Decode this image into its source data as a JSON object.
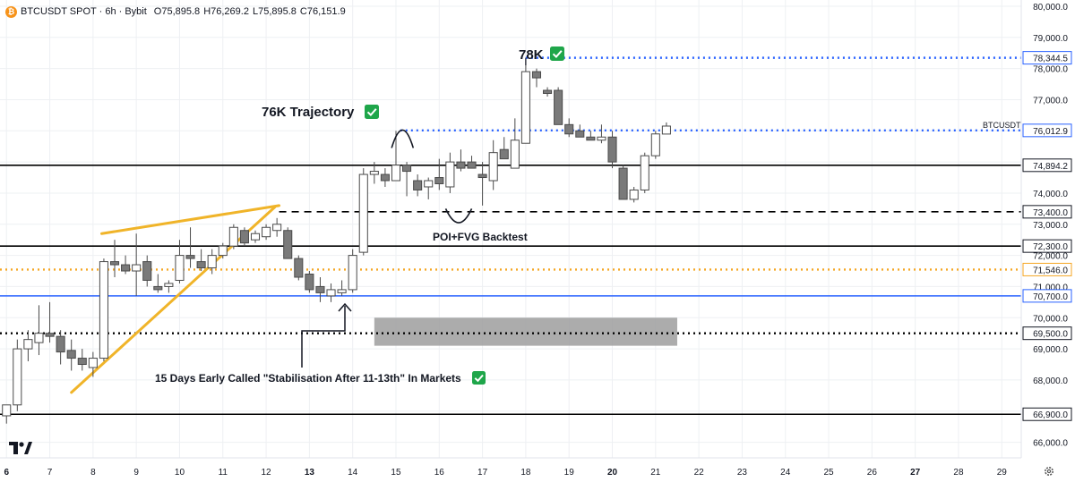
{
  "header": {
    "symbol_line": "BTCUSDT SPOT · 6h · Bybit",
    "coin_icon": "bitcoin-icon",
    "o_label": "O",
    "o_value": "75,895.8",
    "h_label": "H",
    "h_value": "76,269.2",
    "l_label": "L",
    "l_value": "75,895.8",
    "c_label": "C",
    "c_value": "76,151.9"
  },
  "brand_icon": "tradingview-logo-icon",
  "settings_icon": "gear-icon",
  "chart_data": {
    "type": "candlestick",
    "timeframe": "6h",
    "symbol": "BTCUSDT",
    "up_color": "#ffffff",
    "down_color": "#7a7a7a",
    "wick_color": "#4a4a4a",
    "y_range": [
      65500,
      80200
    ],
    "x_range": [
      5.85,
      29.45
    ],
    "y_ticks": [
      66000,
      67000,
      68000,
      69000,
      70000,
      71000,
      72000,
      73000,
      74000,
      75000,
      76000,
      77000,
      78000,
      79000,
      80000
    ],
    "y_tick_labels": [
      "66,000.0",
      "67,000.0",
      "68,000.0",
      "69,000.0",
      "70,000.0",
      "71,000.0",
      "72,000.0",
      "73,000.0",
      "74,000.0",
      "75,000.0",
      "76,000.0",
      "77,000.0",
      "78,000.0",
      "79,000.0",
      "80,000.0"
    ],
    "x_ticks": [
      6,
      7,
      8,
      9,
      10,
      11,
      12,
      13,
      14,
      15,
      16,
      17,
      18,
      19,
      20,
      21,
      22,
      23,
      24,
      25,
      26,
      27,
      28,
      29
    ],
    "x_tick_labels": [
      "6",
      "7",
      "8",
      "9",
      "10",
      "11",
      "12",
      "13",
      "14",
      "15",
      "16",
      "17",
      "18",
      "19",
      "20",
      "21",
      "22",
      "23",
      "24",
      "25",
      "26",
      "27",
      "28",
      "29"
    ],
    "bold_x_ticks": [
      "6",
      "13",
      "20",
      "27"
    ],
    "grid": true,
    "candles": [
      {
        "t": 6.0,
        "o": 66850,
        "h": 67100,
        "l": 66600,
        "c": 67200
      },
      {
        "t": 6.25,
        "o": 67200,
        "h": 69300,
        "l": 67000,
        "c": 69000
      },
      {
        "t": 6.5,
        "o": 69000,
        "h": 69600,
        "l": 68600,
        "c": 69300
      },
      {
        "t": 6.75,
        "o": 69200,
        "h": 70400,
        "l": 68800,
        "c": 69500
      },
      {
        "t": 7.0,
        "o": 69500,
        "h": 70500,
        "l": 69200,
        "c": 69400
      },
      {
        "t": 7.25,
        "o": 69400,
        "h": 69600,
        "l": 68500,
        "c": 68900
      },
      {
        "t": 7.5,
        "o": 68950,
        "h": 69300,
        "l": 68300,
        "c": 68700
      },
      {
        "t": 7.75,
        "o": 68700,
        "h": 69000,
        "l": 68300,
        "c": 68500
      },
      {
        "t": 8.0,
        "o": 68400,
        "h": 68900,
        "l": 68100,
        "c": 68700
      },
      {
        "t": 8.25,
        "o": 68700,
        "h": 71900,
        "l": 68600,
        "c": 71800
      },
      {
        "t": 8.5,
        "o": 71800,
        "h": 72500,
        "l": 71300,
        "c": 71700
      },
      {
        "t": 8.75,
        "o": 71700,
        "h": 72000,
        "l": 71400,
        "c": 71500
      },
      {
        "t": 9.0,
        "o": 71500,
        "h": 72700,
        "l": 70700,
        "c": 71700
      },
      {
        "t": 9.25,
        "o": 71800,
        "h": 72000,
        "l": 71000,
        "c": 71200
      },
      {
        "t": 9.5,
        "o": 71000,
        "h": 71400,
        "l": 70800,
        "c": 70900
      },
      {
        "t": 9.75,
        "o": 71000,
        "h": 71200,
        "l": 70800,
        "c": 71100
      },
      {
        "t": 10.0,
        "o": 71200,
        "h": 72500,
        "l": 71100,
        "c": 72000
      },
      {
        "t": 10.25,
        "o": 72000,
        "h": 72900,
        "l": 71600,
        "c": 71900
      },
      {
        "t": 10.5,
        "o": 71800,
        "h": 72200,
        "l": 71500,
        "c": 71600
      },
      {
        "t": 10.75,
        "o": 71600,
        "h": 72200,
        "l": 71400,
        "c": 72000
      },
      {
        "t": 11.0,
        "o": 72000,
        "h": 72400,
        "l": 71900,
        "c": 72300
      },
      {
        "t": 11.25,
        "o": 72300,
        "h": 73000,
        "l": 72200,
        "c": 72900
      },
      {
        "t": 11.5,
        "o": 72800,
        "h": 72900,
        "l": 72300,
        "c": 72400
      },
      {
        "t": 11.75,
        "o": 72500,
        "h": 72800,
        "l": 72400,
        "c": 72700
      },
      {
        "t": 12.0,
        "o": 72600,
        "h": 73000,
        "l": 72500,
        "c": 72900
      },
      {
        "t": 12.25,
        "o": 72800,
        "h": 73200,
        "l": 72600,
        "c": 73000
      },
      {
        "t": 12.5,
        "o": 72800,
        "h": 72900,
        "l": 71900,
        "c": 71900
      },
      {
        "t": 12.75,
        "o": 71900,
        "h": 72000,
        "l": 71200,
        "c": 71300
      },
      {
        "t": 13.0,
        "o": 71400,
        "h": 71500,
        "l": 70800,
        "c": 70900
      },
      {
        "t": 13.25,
        "o": 71000,
        "h": 71300,
        "l": 70500,
        "c": 70800
      },
      {
        "t": 13.5,
        "o": 70700,
        "h": 71100,
        "l": 70500,
        "c": 70900
      },
      {
        "t": 13.75,
        "o": 70800,
        "h": 71200,
        "l": 70700,
        "c": 70900
      },
      {
        "t": 14.0,
        "o": 70900,
        "h": 72200,
        "l": 70800,
        "c": 72000
      },
      {
        "t": 14.25,
        "o": 72100,
        "h": 74800,
        "l": 72000,
        "c": 74600
      },
      {
        "t": 14.5,
        "o": 74600,
        "h": 75000,
        "l": 74300,
        "c": 74700
      },
      {
        "t": 14.75,
        "o": 74600,
        "h": 74800,
        "l": 74200,
        "c": 74400
      },
      {
        "t": 15.0,
        "o": 74400,
        "h": 76000,
        "l": 74400,
        "c": 74900
      },
      {
        "t": 15.25,
        "o": 74900,
        "h": 75000,
        "l": 73900,
        "c": 74700
      },
      {
        "t": 15.5,
        "o": 74400,
        "h": 74600,
        "l": 73900,
        "c": 74100
      },
      {
        "t": 15.75,
        "o": 74200,
        "h": 74500,
        "l": 73800,
        "c": 74400
      },
      {
        "t": 16.0,
        "o": 74500,
        "h": 75100,
        "l": 74100,
        "c": 74300
      },
      {
        "t": 16.25,
        "o": 74200,
        "h": 75300,
        "l": 74000,
        "c": 75000
      },
      {
        "t": 16.5,
        "o": 75000,
        "h": 75400,
        "l": 74700,
        "c": 74800
      },
      {
        "t": 16.75,
        "o": 75000,
        "h": 75200,
        "l": 74800,
        "c": 74800
      },
      {
        "t": 17.0,
        "o": 74600,
        "h": 75000,
        "l": 73600,
        "c": 74500
      },
      {
        "t": 17.25,
        "o": 74400,
        "h": 75700,
        "l": 74100,
        "c": 75300
      },
      {
        "t": 17.5,
        "o": 75400,
        "h": 75800,
        "l": 75200,
        "c": 75100
      },
      {
        "t": 17.75,
        "o": 74800,
        "h": 76400,
        "l": 74800,
        "c": 75700
      },
      {
        "t": 18.0,
        "o": 75600,
        "h": 78300,
        "l": 75600,
        "c": 77900
      },
      {
        "t": 18.25,
        "o": 77900,
        "h": 78000,
        "l": 77400,
        "c": 77700
      },
      {
        "t": 18.5,
        "o": 77300,
        "h": 77400,
        "l": 77100,
        "c": 77200
      },
      {
        "t": 18.75,
        "o": 77300,
        "h": 77400,
        "l": 76200,
        "c": 76200
      },
      {
        "t": 19.0,
        "o": 76200,
        "h": 76400,
        "l": 75800,
        "c": 75900
      },
      {
        "t": 19.25,
        "o": 76000,
        "h": 76200,
        "l": 75800,
        "c": 75800
      },
      {
        "t": 19.5,
        "o": 75800,
        "h": 76000,
        "l": 75700,
        "c": 75700
      },
      {
        "t": 19.75,
        "o": 75700,
        "h": 76200,
        "l": 75600,
        "c": 75800
      },
      {
        "t": 20.0,
        "o": 75800,
        "h": 76000,
        "l": 74800,
        "c": 75000
      },
      {
        "t": 20.25,
        "o": 74800,
        "h": 74900,
        "l": 73800,
        "c": 73800
      },
      {
        "t": 20.5,
        "o": 73800,
        "h": 74200,
        "l": 73700,
        "c": 74100
      },
      {
        "t": 20.75,
        "o": 74100,
        "h": 75300,
        "l": 74000,
        "c": 75200
      },
      {
        "t": 21.0,
        "o": 75200,
        "h": 76000,
        "l": 75100,
        "c": 75900
      },
      {
        "t": 21.25,
        "o": 75896,
        "h": 76269,
        "l": 75896,
        "c": 76152
      }
    ]
  },
  "levels": [
    {
      "value": 78344.5,
      "label": "78,344.5",
      "color": "#2962ff",
      "style": "dotted",
      "from": 18.0
    },
    {
      "value": 76012.9,
      "label": "76,012.9",
      "color": "#2962ff",
      "style": "dotted",
      "from": 15.1
    },
    {
      "value": 74894.2,
      "label": "74,894.2",
      "color": "#000000",
      "style": "solid",
      "from": 5.85
    },
    {
      "value": 73400.0,
      "label": "73,400.0",
      "color": "#000000",
      "style": "dashed",
      "from": 12.3
    },
    {
      "value": 72300.0,
      "label": "72,300.0",
      "color": "#000000",
      "style": "solid",
      "from": 5.85
    },
    {
      "value": 71546.0,
      "label": "71,546.0",
      "color": "#f5a623",
      "style": "dotted",
      "from": 5.85
    },
    {
      "value": 70700.0,
      "label": "70,700.0",
      "color": "#2962ff",
      "style": "solid",
      "from": 5.85
    },
    {
      "value": 69500.0,
      "label": "69,500.0",
      "color": "#000000",
      "style": "dotted",
      "from": 5.85
    },
    {
      "value": 66900.0,
      "label": "66,900.0",
      "color": "#000000",
      "style": "solid",
      "from": 5.85
    }
  ],
  "symbol_tag": "BTCUSDT",
  "zone": {
    "x_from": 14.5,
    "x_to": 21.5,
    "y_from": 69100,
    "y_to": 70000,
    "color": "#9e9e9e"
  },
  "wedge": {
    "color": "#f0b429",
    "lines": [
      {
        "x1": 8.2,
        "y1": 72700,
        "x2": 12.3,
        "y2": 73600
      },
      {
        "x1": 7.5,
        "y1": 67600,
        "x2": 12.2,
        "y2": 73550
      }
    ]
  },
  "annotations": {
    "seventy_eight_k": "78K",
    "seventy_six_k": "76K Trajectory",
    "poi_fvg": "POI+FVG Backtest",
    "stabilisation": "15 Days Early Called \"Stabilisation After 11-13th\" In Markets",
    "check_color": "#1fa64a",
    "check_icon": "checkmark-icon"
  }
}
